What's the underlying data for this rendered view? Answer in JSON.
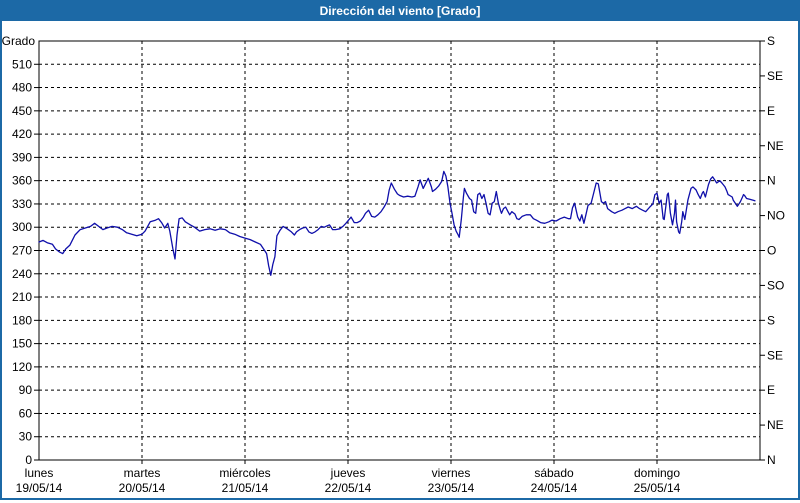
{
  "window": {
    "title": "Dirección del viento [Grado]"
  },
  "colors": {
    "titlebar_bg": "#1c69a6",
    "frame_border": "#1c69a6",
    "series_line": "#0f0faa",
    "grid": "#000000",
    "text": "#000000",
    "background": "#ffffff"
  },
  "chart_data": {
    "type": "line",
    "title": "Dirección del viento [Grado]",
    "ylabel": "Grado",
    "grid": {
      "horizontal_step_deg": 30,
      "vertical_per_day": true,
      "style": "dashed"
    },
    "legend": "none",
    "y_axis_left": {
      "label": "Grado",
      "min": 0,
      "max": 540,
      "tick_step": 30,
      "ticks": [
        0,
        30,
        60,
        90,
        120,
        150,
        180,
        210,
        240,
        270,
        300,
        330,
        360,
        390,
        420,
        450,
        480,
        510
      ]
    },
    "y_axis_right": {
      "ticks": [
        {
          "value": 540,
          "label": "S"
        },
        {
          "value": 495,
          "label": "SE"
        },
        {
          "value": 450,
          "label": "E"
        },
        {
          "value": 405,
          "label": "NE"
        },
        {
          "value": 360,
          "label": "N"
        },
        {
          "value": 315,
          "label": "NO"
        },
        {
          "value": 270,
          "label": "O"
        },
        {
          "value": 225,
          "label": "SO"
        },
        {
          "value": 180,
          "label": "S"
        },
        {
          "value": 135,
          "label": "SE"
        },
        {
          "value": 90,
          "label": "E"
        },
        {
          "value": 45,
          "label": "NE"
        },
        {
          "value": 0,
          "label": "N"
        }
      ]
    },
    "x_axis": {
      "min_day": 0,
      "max_day": 7,
      "days": [
        {
          "name": "lunes",
          "date": "19/05/14"
        },
        {
          "name": "martes",
          "date": "20/05/14"
        },
        {
          "name": "miércoles",
          "date": "21/05/14"
        },
        {
          "name": "jueves",
          "date": "22/05/14"
        },
        {
          "name": "viernes",
          "date": "23/05/14"
        },
        {
          "name": "sábado",
          "date": "24/05/14"
        },
        {
          "name": "domingo",
          "date": "25/05/14"
        }
      ]
    },
    "series": [
      {
        "name": "Dirección del viento",
        "unit": "Grado",
        "points": [
          [
            0.0,
            281
          ],
          [
            0.04,
            283
          ],
          [
            0.08,
            280
          ],
          [
            0.13,
            278
          ],
          [
            0.16,
            272
          ],
          [
            0.2,
            268
          ],
          [
            0.23,
            266
          ],
          [
            0.26,
            272
          ],
          [
            0.3,
            277
          ],
          [
            0.35,
            290
          ],
          [
            0.4,
            297
          ],
          [
            0.45,
            299
          ],
          [
            0.5,
            301
          ],
          [
            0.54,
            305
          ],
          [
            0.58,
            301
          ],
          [
            0.62,
            297
          ],
          [
            0.66,
            299
          ],
          [
            0.71,
            301
          ],
          [
            0.76,
            300
          ],
          [
            0.81,
            297
          ],
          [
            0.85,
            293
          ],
          [
            0.9,
            291
          ],
          [
            0.95,
            289
          ],
          [
            1.0,
            291
          ],
          [
            1.03,
            295
          ],
          [
            1.08,
            307
          ],
          [
            1.13,
            309
          ],
          [
            1.16,
            311
          ],
          [
            1.19,
            306
          ],
          [
            1.22,
            299
          ],
          [
            1.25,
            305
          ],
          [
            1.27,
            295
          ],
          [
            1.3,
            272
          ],
          [
            1.32,
            259
          ],
          [
            1.34,
            290
          ],
          [
            1.36,
            311
          ],
          [
            1.39,
            312
          ],
          [
            1.42,
            307
          ],
          [
            1.47,
            303
          ],
          [
            1.51,
            300
          ],
          [
            1.56,
            295
          ],
          [
            1.61,
            297
          ],
          [
            1.66,
            298
          ],
          [
            1.71,
            296
          ],
          [
            1.76,
            298
          ],
          [
            1.81,
            297
          ],
          [
            1.85,
            293
          ],
          [
            1.9,
            291
          ],
          [
            1.95,
            288
          ],
          [
            2.0,
            286
          ],
          [
            2.05,
            284
          ],
          [
            2.1,
            281
          ],
          [
            2.15,
            278
          ],
          [
            2.18,
            272
          ],
          [
            2.21,
            266
          ],
          [
            2.23,
            250
          ],
          [
            2.25,
            238
          ],
          [
            2.27,
            252
          ],
          [
            2.29,
            262
          ],
          [
            2.31,
            289
          ],
          [
            2.34,
            296
          ],
          [
            2.37,
            301
          ],
          [
            2.41,
            298
          ],
          [
            2.45,
            294
          ],
          [
            2.48,
            290
          ],
          [
            2.5,
            294
          ],
          [
            2.53,
            297
          ],
          [
            2.56,
            299
          ],
          [
            2.59,
            300
          ],
          [
            2.62,
            294
          ],
          [
            2.65,
            292
          ],
          [
            2.68,
            294
          ],
          [
            2.71,
            297
          ],
          [
            2.74,
            301
          ],
          [
            2.77,
            300
          ],
          [
            2.8,
            302
          ],
          [
            2.82,
            303
          ],
          [
            2.85,
            297
          ],
          [
            2.88,
            297
          ],
          [
            2.92,
            298
          ],
          [
            2.95,
            301
          ],
          [
            2.98,
            305
          ],
          [
            3.03,
            313
          ],
          [
            3.06,
            306
          ],
          [
            3.09,
            306
          ],
          [
            3.12,
            308
          ],
          [
            3.15,
            313
          ],
          [
            3.17,
            318
          ],
          [
            3.2,
            322
          ],
          [
            3.23,
            314
          ],
          [
            3.26,
            313
          ],
          [
            3.29,
            316
          ],
          [
            3.32,
            320
          ],
          [
            3.35,
            326
          ],
          [
            3.38,
            333
          ],
          [
            3.4,
            348
          ],
          [
            3.42,
            357
          ],
          [
            3.45,
            349
          ],
          [
            3.48,
            343
          ],
          [
            3.5,
            341
          ],
          [
            3.54,
            339
          ],
          [
            3.58,
            340
          ],
          [
            3.62,
            339
          ],
          [
            3.65,
            340
          ],
          [
            3.68,
            352
          ],
          [
            3.7,
            361
          ],
          [
            3.73,
            350
          ],
          [
            3.76,
            358
          ],
          [
            3.78,
            363
          ],
          [
            3.81,
            352
          ],
          [
            3.82,
            346
          ],
          [
            3.85,
            349
          ],
          [
            3.88,
            353
          ],
          [
            3.91,
            359
          ],
          [
            3.93,
            372
          ],
          [
            3.95,
            366
          ],
          [
            3.97,
            352
          ],
          [
            3.99,
            331
          ],
          [
            4.01,
            318
          ],
          [
            4.03,
            303
          ],
          [
            4.05,
            295
          ],
          [
            4.07,
            290
          ],
          [
            4.08,
            287
          ],
          [
            4.1,
            310
          ],
          [
            4.12,
            339
          ],
          [
            4.13,
            350
          ],
          [
            4.15,
            344
          ],
          [
            4.18,
            337
          ],
          [
            4.2,
            335
          ],
          [
            4.22,
            320
          ],
          [
            4.24,
            318
          ],
          [
            4.26,
            342
          ],
          [
            4.28,
            344
          ],
          [
            4.3,
            337
          ],
          [
            4.32,
            342
          ],
          [
            4.34,
            331
          ],
          [
            4.36,
            318
          ],
          [
            4.38,
            316
          ],
          [
            4.4,
            331
          ],
          [
            4.42,
            333
          ],
          [
            4.44,
            346
          ],
          [
            4.46,
            331
          ],
          [
            4.48,
            322
          ],
          [
            4.49,
            318
          ],
          [
            4.51,
            324
          ],
          [
            4.53,
            326
          ],
          [
            4.55,
            321
          ],
          [
            4.57,
            316
          ],
          [
            4.59,
            320
          ],
          [
            4.62,
            317
          ],
          [
            4.64,
            311
          ],
          [
            4.66,
            310
          ],
          [
            4.69,
            314
          ],
          [
            4.73,
            316
          ],
          [
            4.77,
            316
          ],
          [
            4.8,
            311
          ],
          [
            4.83,
            309
          ],
          [
            4.87,
            306
          ],
          [
            4.91,
            305
          ],
          [
            4.95,
            307
          ],
          [
            4.98,
            309
          ],
          [
            5.02,
            308
          ],
          [
            5.06,
            311
          ],
          [
            5.1,
            313
          ],
          [
            5.14,
            311
          ],
          [
            5.16,
            311
          ],
          [
            5.18,
            325
          ],
          [
            5.2,
            331
          ],
          [
            5.23,
            313
          ],
          [
            5.25,
            308
          ],
          [
            5.27,
            316
          ],
          [
            5.29,
            305
          ],
          [
            5.31,
            316
          ],
          [
            5.33,
            328
          ],
          [
            5.36,
            331
          ],
          [
            5.38,
            341
          ],
          [
            5.41,
            357
          ],
          [
            5.43,
            356
          ],
          [
            5.46,
            333
          ],
          [
            5.48,
            331
          ],
          [
            5.5,
            333
          ],
          [
            5.52,
            324
          ],
          [
            5.56,
            320
          ],
          [
            5.59,
            318
          ],
          [
            5.62,
            320
          ],
          [
            5.66,
            322
          ],
          [
            5.69,
            324
          ],
          [
            5.72,
            326
          ],
          [
            5.76,
            324
          ],
          [
            5.8,
            327
          ],
          [
            5.83,
            324
          ],
          [
            5.86,
            322
          ],
          [
            5.89,
            320
          ],
          [
            5.93,
            326
          ],
          [
            5.96,
            330
          ],
          [
            5.98,
            342
          ],
          [
            6.0,
            344
          ],
          [
            6.02,
            331
          ],
          [
            6.04,
            335
          ],
          [
            6.06,
            311
          ],
          [
            6.07,
            310
          ],
          [
            6.1,
            342
          ],
          [
            6.11,
            344
          ],
          [
            6.13,
            318
          ],
          [
            6.15,
            303
          ],
          [
            6.17,
            318
          ],
          [
            6.18,
            335
          ],
          [
            6.19,
            307
          ],
          [
            6.21,
            294
          ],
          [
            6.22,
            292
          ],
          [
            6.24,
            307
          ],
          [
            6.25,
            320
          ],
          [
            6.27,
            310
          ],
          [
            6.3,
            335
          ],
          [
            6.33,
            350
          ],
          [
            6.35,
            352
          ],
          [
            6.38,
            348
          ],
          [
            6.4,
            342
          ],
          [
            6.42,
            337
          ],
          [
            6.44,
            344
          ],
          [
            6.45,
            346
          ],
          [
            6.47,
            339
          ],
          [
            6.5,
            355
          ],
          [
            6.52,
            362
          ],
          [
            6.54,
            365
          ],
          [
            6.56,
            361
          ],
          [
            6.58,
            357
          ],
          [
            6.61,
            360
          ],
          [
            6.63,
            357
          ],
          [
            6.66,
            352
          ],
          [
            6.68,
            346
          ],
          [
            6.69,
            342
          ],
          [
            6.73,
            339
          ],
          [
            6.74,
            335
          ],
          [
            6.76,
            331
          ],
          [
            6.78,
            327
          ],
          [
            6.79,
            329
          ],
          [
            6.81,
            333
          ],
          [
            6.83,
            339
          ],
          [
            6.84,
            342
          ],
          [
            6.85,
            341
          ],
          [
            6.87,
            337
          ],
          [
            6.9,
            336
          ],
          [
            6.93,
            335
          ],
          [
            6.95,
            334
          ]
        ]
      }
    ]
  }
}
